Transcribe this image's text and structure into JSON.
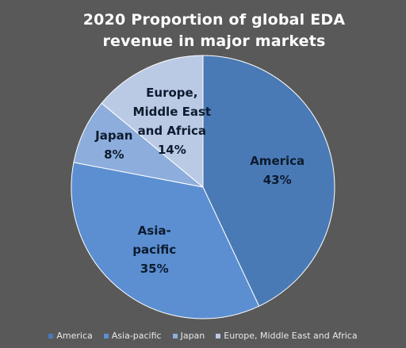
{
  "chart_data": {
    "type": "pie",
    "title": "2020 Proportion of global EDA revenue in major markets",
    "categories": [
      "America",
      "Asia-pacific",
      "Japan",
      "Europe, Middle East and Africa"
    ],
    "values": [
      43,
      35,
      8,
      14
    ],
    "value_labels": [
      "43%",
      "35%",
      "8%",
      "14%"
    ],
    "slice_label_lines": [
      [
        "America"
      ],
      [
        "Asia-",
        "pacific"
      ],
      [
        "Japan"
      ],
      [
        "Europe,",
        "Middle East",
        "and Africa"
      ]
    ],
    "colors": [
      "#4a7ab5",
      "#5b8fd1",
      "#8daedc",
      "#bac9e4"
    ],
    "start_angle": "12 o'clock",
    "direction": "clockwise",
    "legend": "bottom",
    "background": "#595959"
  }
}
